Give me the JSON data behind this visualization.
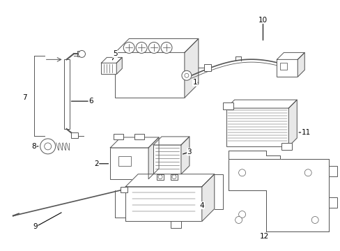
{
  "background_color": "#ffffff",
  "line_color": "#555555",
  "text_color": "#000000",
  "figsize": [
    4.89,
    3.6
  ],
  "dpi": 100
}
